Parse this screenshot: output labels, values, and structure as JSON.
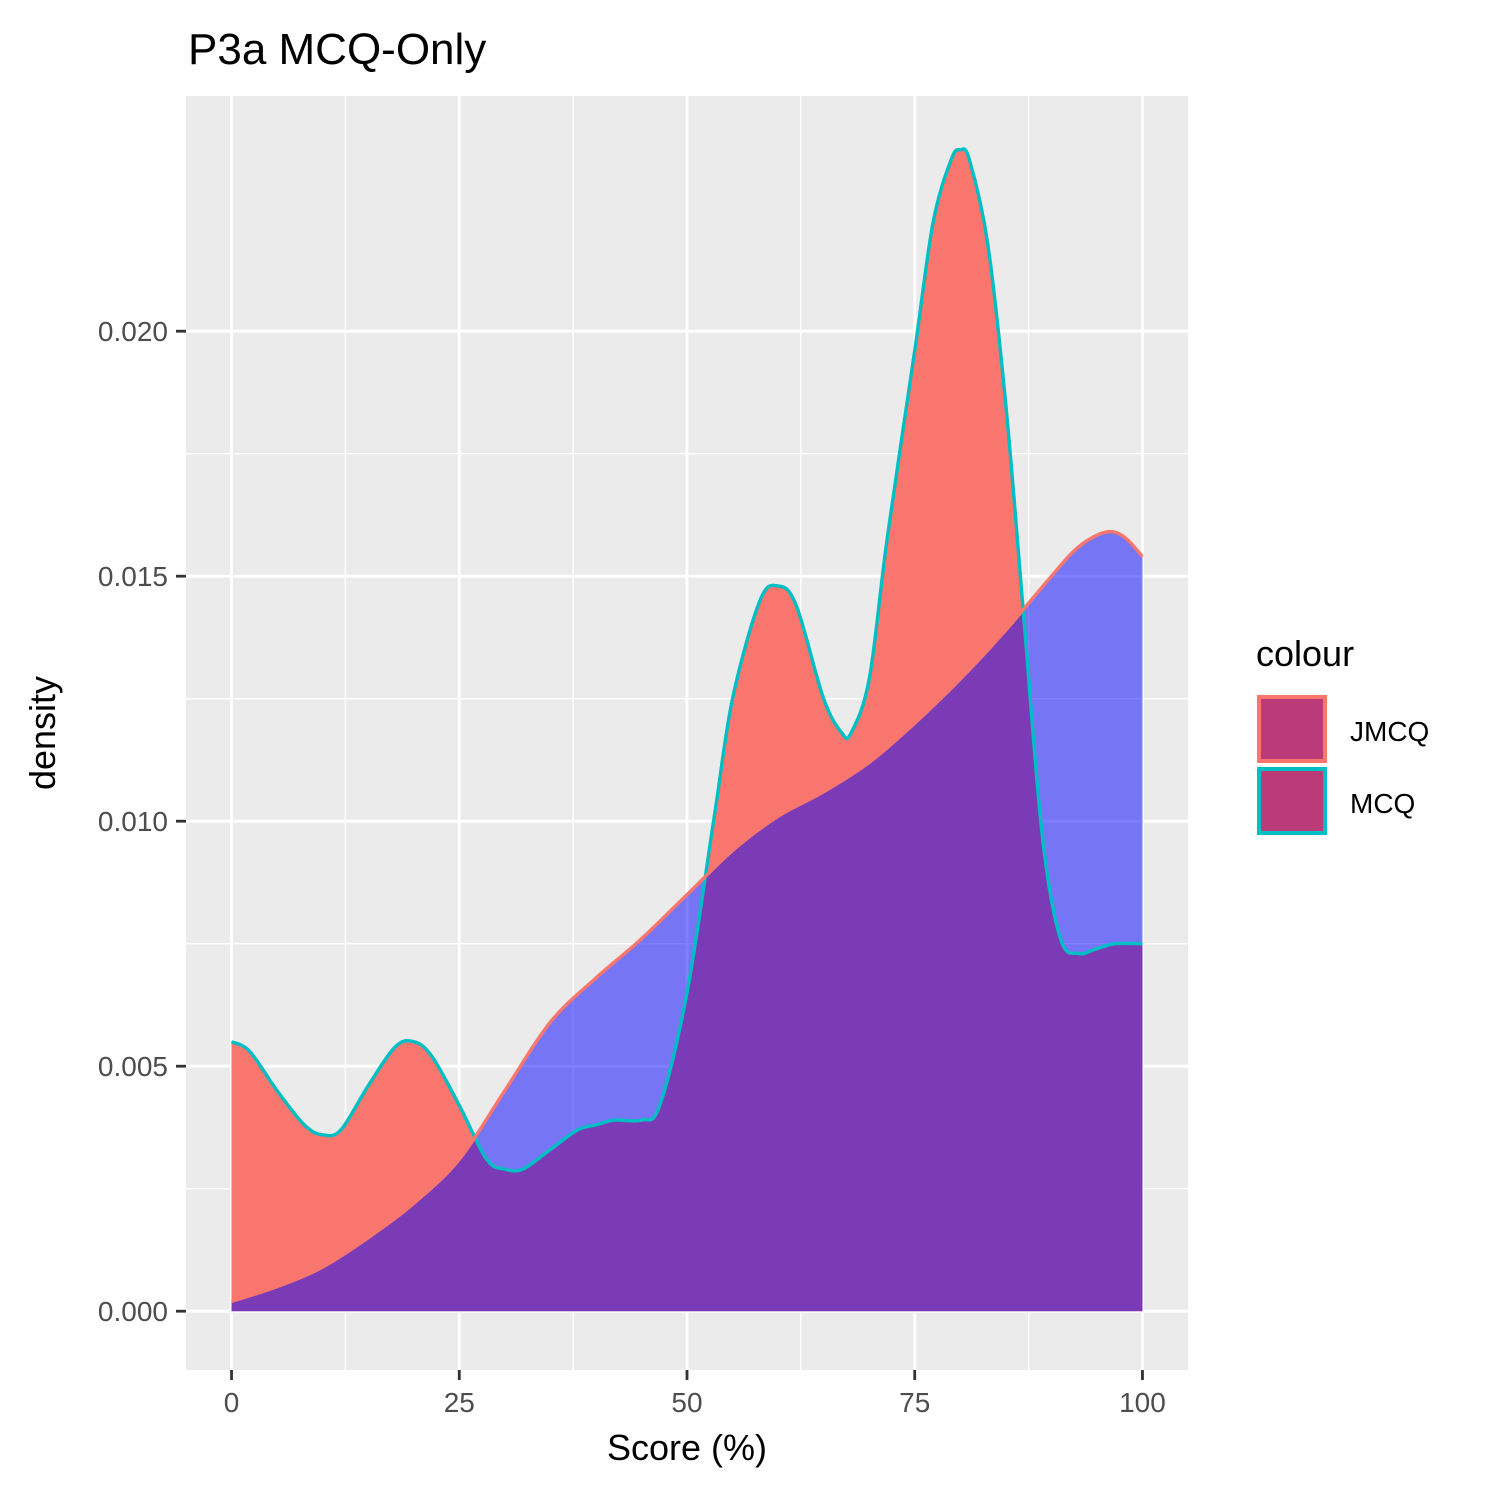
{
  "chart_data": {
    "type": "area",
    "title": "P3a MCQ-Only",
    "xlabel": "Score (%)",
    "ylabel": "density",
    "xlim": [
      -5,
      105
    ],
    "ylim": [
      -0.0012,
      0.0248
    ],
    "x_ticks": [
      0,
      25,
      50,
      75,
      100
    ],
    "x_tick_labels": [
      "0",
      "25",
      "50",
      "75",
      "100"
    ],
    "y_ticks": [
      0.0,
      0.005,
      0.01,
      0.015,
      0.02
    ],
    "y_tick_labels": [
      "0.000",
      "0.005",
      "0.010",
      "0.015",
      "0.020"
    ],
    "grid": true,
    "legend": {
      "title": "colour",
      "position": "right",
      "entries": [
        {
          "label": "JMCQ",
          "outline": "#F8766D",
          "fill": "#BB3A78"
        },
        {
          "label": "MCQ",
          "outline": "#00BFC4",
          "fill": "#BB3A78"
        }
      ]
    },
    "colors": {
      "panel_bg": "#EBEBEB",
      "grid": "#FFFFFF",
      "jmcq_fill": "#F8766D",
      "jmcq_line": "#F8766D",
      "mcq_fill": "#0000FF",
      "mcq_line": "#00BFC4",
      "overlap_fill": "#BB3A78"
    },
    "series": [
      {
        "name": "MCQ",
        "x": [
          0,
          2,
          5,
          8,
          10,
          12,
          15,
          18,
          20,
          22,
          25,
          28,
          30,
          32,
          35,
          38,
          40,
          42,
          45,
          47,
          50,
          53,
          55,
          58,
          60,
          62,
          65,
          67,
          68,
          70,
          72,
          75,
          77,
          79,
          80,
          81,
          83,
          85,
          87,
          89,
          91,
          93,
          95,
          97,
          100
        ],
        "y": [
          0.0055,
          0.0053,
          0.0045,
          0.0038,
          0.0036,
          0.0037,
          0.0046,
          0.0054,
          0.0055,
          0.0052,
          0.0042,
          0.0031,
          0.0029,
          0.0029,
          0.0033,
          0.0037,
          0.0038,
          0.0039,
          0.0039,
          0.0042,
          0.0065,
          0.0101,
          0.0125,
          0.0145,
          0.0148,
          0.0144,
          0.0125,
          0.0118,
          0.0118,
          0.0129,
          0.0158,
          0.0196,
          0.0222,
          0.0235,
          0.0237,
          0.0235,
          0.0218,
          0.0185,
          0.0141,
          0.0097,
          0.0076,
          0.0073,
          0.0074,
          0.0075,
          0.0075
        ]
      },
      {
        "name": "JMCQ",
        "x": [
          0,
          5,
          10,
          15,
          20,
          25,
          30,
          35,
          40,
          45,
          50,
          55,
          60,
          65,
          70,
          75,
          80,
          85,
          90,
          93,
          96,
          98,
          100
        ],
        "y": [
          0.0002,
          0.0005,
          0.0009,
          0.0015,
          0.0022,
          0.0031,
          0.0045,
          0.0059,
          0.0068,
          0.0076,
          0.0085,
          0.0094,
          0.0101,
          0.0106,
          0.0112,
          0.012,
          0.0129,
          0.0139,
          0.015,
          0.0156,
          0.0159,
          0.0158,
          0.0154
        ]
      }
    ]
  }
}
